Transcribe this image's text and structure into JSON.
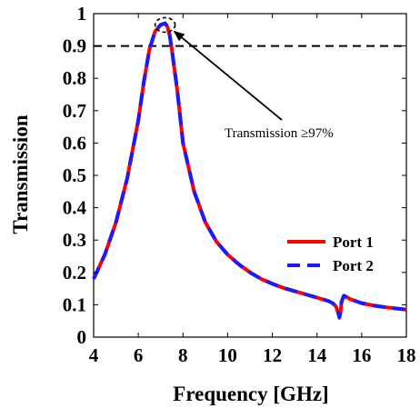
{
  "chart_data": {
    "type": "line",
    "xlabel": "Frequency [GHz]",
    "ylabel": "Transmission",
    "xlim": [
      4,
      18
    ],
    "ylim": [
      0,
      1
    ],
    "xticks": [
      "4",
      "6",
      "8",
      "10",
      "12",
      "14",
      "16",
      "18"
    ],
    "yticks": [
      "0",
      "0.1",
      "0.2",
      "0.3",
      "0.4",
      "0.5",
      "0.6",
      "0.7",
      "0.8",
      "0.9",
      "1"
    ],
    "grid": false,
    "legend_position": "right",
    "reference_line": {
      "y": 0.9,
      "style": "dashed",
      "color": "#000000"
    },
    "annotation": {
      "text": "Transmission ≥97%",
      "target_x": 7.2,
      "target_y": 0.965
    },
    "x": [
      4.0,
      4.5,
      5.0,
      5.5,
      6.0,
      6.25,
      6.5,
      6.75,
      7.0,
      7.1,
      7.2,
      7.3,
      7.4,
      7.5,
      7.75,
      8.0,
      8.5,
      9.0,
      9.5,
      10.0,
      10.5,
      11.0,
      11.5,
      12.0,
      12.5,
      13.0,
      13.5,
      14.0,
      14.5,
      14.7,
      14.85,
      14.95,
      15.0,
      15.05,
      15.1,
      15.2,
      15.3,
      15.5,
      16.0,
      16.5,
      17.0,
      17.5,
      18.0
    ],
    "series": [
      {
        "name": "Port 1",
        "color": "#ff0000",
        "style": "solid",
        "values": [
          0.18,
          0.255,
          0.355,
          0.49,
          0.67,
          0.79,
          0.89,
          0.945,
          0.965,
          0.968,
          0.97,
          0.96,
          0.935,
          0.89,
          0.76,
          0.6,
          0.45,
          0.355,
          0.295,
          0.255,
          0.225,
          0.2,
          0.18,
          0.165,
          0.152,
          0.142,
          0.132,
          0.122,
          0.112,
          0.105,
          0.095,
          0.075,
          0.065,
          0.075,
          0.11,
          0.128,
          0.125,
          0.117,
          0.105,
          0.098,
          0.093,
          0.089,
          0.085
        ]
      },
      {
        "name": "Port 2",
        "color": "#1a1aff",
        "style": "dashed",
        "values": [
          0.18,
          0.255,
          0.355,
          0.49,
          0.67,
          0.79,
          0.89,
          0.945,
          0.965,
          0.968,
          0.97,
          0.96,
          0.935,
          0.89,
          0.76,
          0.6,
          0.45,
          0.355,
          0.295,
          0.255,
          0.225,
          0.2,
          0.18,
          0.165,
          0.152,
          0.142,
          0.132,
          0.122,
          0.112,
          0.105,
          0.095,
          0.075,
          0.06,
          0.075,
          0.11,
          0.128,
          0.125,
          0.117,
          0.105,
          0.098,
          0.093,
          0.089,
          0.085
        ]
      }
    ]
  }
}
